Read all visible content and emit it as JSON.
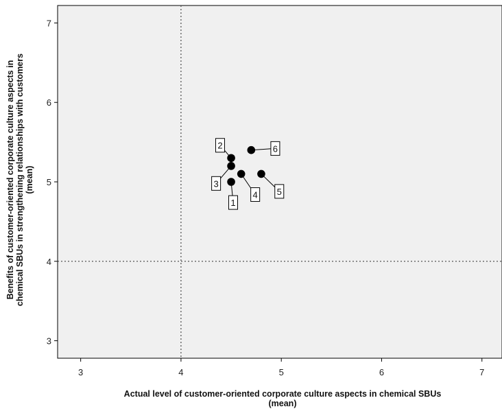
{
  "chart_data": {
    "type": "scatter",
    "title": "",
    "xlabel": "Actual level of customer-oriented corporate culture aspects in chemical SBUs",
    "xlabel_line2": "(mean)",
    "ylabel_line1": "Benefits of customer-oriented corporate culture aspects in",
    "ylabel_line2": "chemical SBUs in strengthening relationships with customers",
    "ylabel_line3": "(mean)",
    "xlim": [
      2.77,
      7.2
    ],
    "ylim": [
      2.78,
      7.22
    ],
    "xticks": [
      3,
      4,
      5,
      6,
      7
    ],
    "yticks": [
      3,
      4,
      5,
      6,
      7
    ],
    "reference_lines": {
      "x": 4,
      "y": 4,
      "style": "dotted"
    },
    "grid": false,
    "legend": "none",
    "colors": {
      "plot_background": "#f0f0f0",
      "marker": "#000000",
      "reference_line": "#555555"
    },
    "points": [
      {
        "label": "1",
        "x": 4.5,
        "y": 5.0,
        "label_x": 4.52,
        "label_y": 4.74
      },
      {
        "label": "2",
        "x": 4.5,
        "y": 5.3,
        "label_x": 4.39,
        "label_y": 5.46
      },
      {
        "label": "3",
        "x": 4.5,
        "y": 5.2,
        "label_x": 4.35,
        "label_y": 4.98
      },
      {
        "label": "4",
        "x": 4.6,
        "y": 5.1,
        "label_x": 4.74,
        "label_y": 4.84
      },
      {
        "label": "5",
        "x": 4.8,
        "y": 5.1,
        "label_x": 4.98,
        "label_y": 4.88
      },
      {
        "label": "6",
        "x": 4.7,
        "y": 5.4,
        "label_x": 4.94,
        "label_y": 5.42
      }
    ]
  }
}
